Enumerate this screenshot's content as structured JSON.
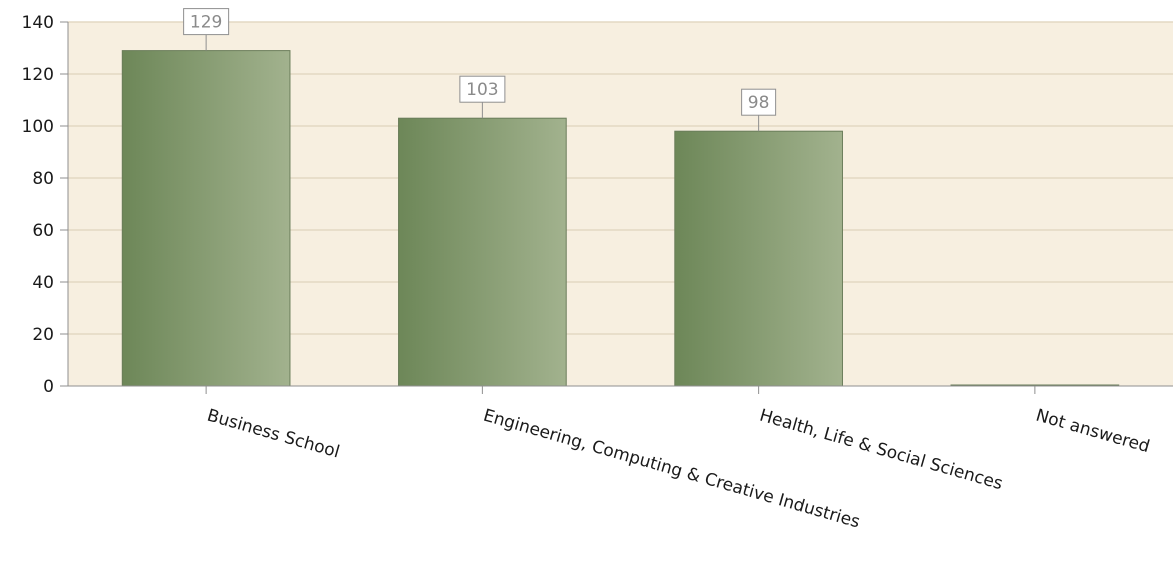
{
  "chart_data": {
    "type": "bar",
    "categories": [
      "Business School",
      "Engineering, Computing & Creative Industries",
      "Health, Life & Social Sciences",
      "Not answered"
    ],
    "values": [
      129,
      103,
      98,
      0
    ],
    "data_labels": [
      "129",
      "103",
      "98",
      ""
    ],
    "ylim": [
      0,
      140
    ],
    "yticks": [
      0,
      20,
      40,
      60,
      80,
      100,
      120,
      140
    ],
    "grid": true,
    "title": "",
    "xlabel": "",
    "ylabel": "",
    "colors": {
      "plot_background": "#f7efe0",
      "bar_dark": "#6d8758",
      "bar_light": "#a2b28e",
      "bar_border": "#6a7d5a",
      "gridline": "#e3d8c3",
      "axis": "#8f8f8f"
    }
  }
}
